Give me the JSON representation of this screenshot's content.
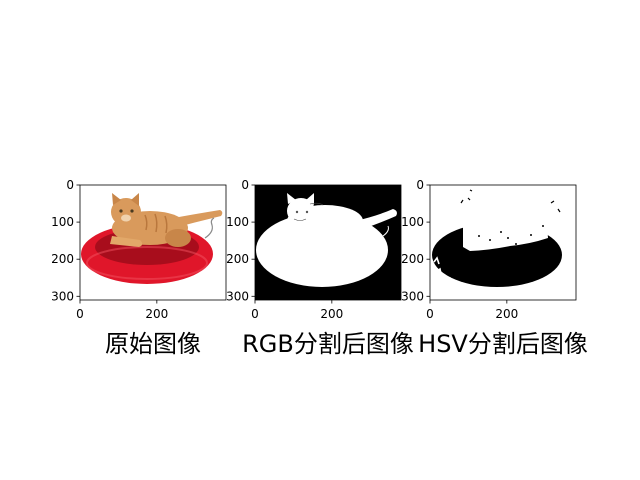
{
  "chart_data": [
    {
      "type": "image",
      "image_kind": "photo",
      "xlabel_text": "原始图像",
      "xlim": [
        0,
        380
      ],
      "ylim": [
        310,
        0
      ],
      "x_ticks": [
        0,
        200
      ],
      "y_ticks": [
        0,
        100,
        200,
        300
      ]
    },
    {
      "type": "image",
      "image_kind": "rgb-mask",
      "xlabel_text": "RGB分割后图像",
      "xlim": [
        0,
        380
      ],
      "ylim": [
        310,
        0
      ],
      "x_ticks": [
        0,
        200
      ],
      "y_ticks": [
        0,
        100,
        200,
        300
      ]
    },
    {
      "type": "image",
      "image_kind": "hsv-mask",
      "xlabel_text": "HSV分割后图像",
      "xlim": [
        0,
        380
      ],
      "ylim": [
        310,
        0
      ],
      "x_ticks": [
        0,
        200
      ],
      "y_ticks": [
        0,
        100,
        200,
        300
      ]
    }
  ],
  "colors": {
    "cushion_red": "#e0162a",
    "cushion_dark": "#a80d1c",
    "cat_orange": "#d99a5c",
    "cat_dark": "#b9773d",
    "mask_black": "#000000",
    "mask_white": "#ffffff"
  }
}
